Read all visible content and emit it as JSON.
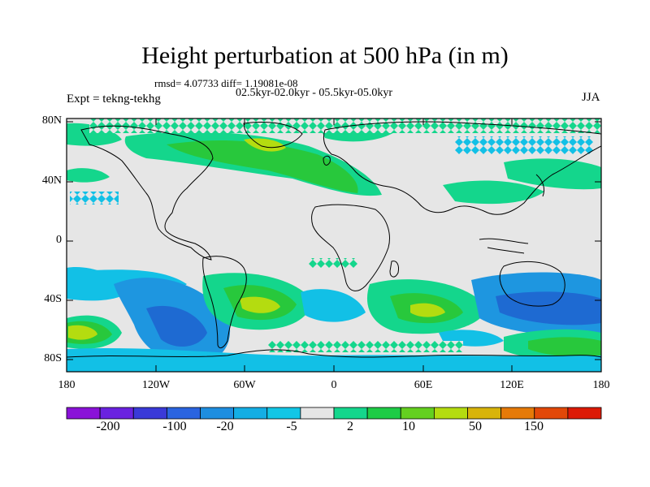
{
  "title": "Height perturbation at 500 hPa (in m)",
  "stats": "rmsd= 4.07733 diff= 1.19081e-08",
  "period": "02.5kyr-02.0kyr - 05.5kyr-05.0kyr",
  "expt": "Expt = tekng-tekhg",
  "season": "JJA",
  "lat_labels": [
    "80N",
    "40N",
    "0",
    "40S",
    "80S"
  ],
  "lon_labels": [
    "180",
    "120W",
    "60W",
    "0",
    "60E",
    "120E",
    "180"
  ],
  "colorbar": {
    "labels": [
      "-200",
      "-100",
      "-20",
      "-5",
      "2",
      "10",
      "50",
      "150"
    ],
    "colors": [
      "#8a12d8",
      "#6a22e0",
      "#3a3ad8",
      "#2a64e0",
      "#1e8ee0",
      "#14aee4",
      "#12c6e6",
      "#e6e6e6",
      "#14d68c",
      "#1ecc46",
      "#64d020",
      "#b4dc10",
      "#d8b40a",
      "#e67a08",
      "#e24808",
      "#dc1a06"
    ]
  },
  "legend_colors": {
    "land_bg": "#e6e6e6",
    "blue_dark": "#1e6ad2",
    "blue_mid": "#1e96e0",
    "cyan": "#12c0e6",
    "green_light": "#14d68c",
    "green": "#28c83c",
    "yellow_green": "#b4dc10"
  }
}
